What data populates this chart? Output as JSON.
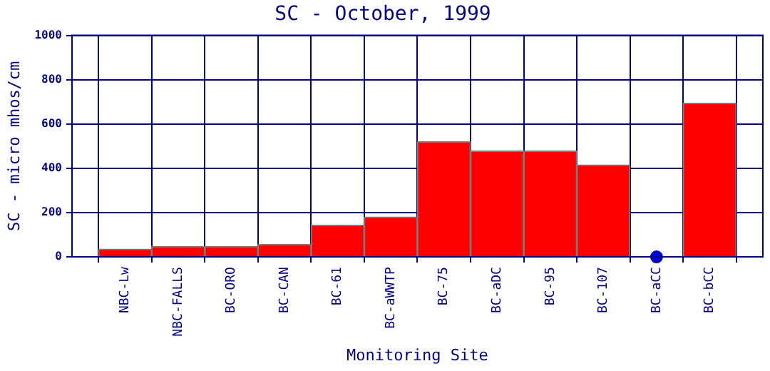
{
  "chart_data": {
    "type": "bar",
    "title": "SC - October, 1999",
    "xlabel": "Monitoring Site",
    "ylabel": "SC - micro mhos/cm",
    "categories": [
      "NBC-Lw",
      "NBC-FALLS",
      "BC-ORO",
      "BC-CAN",
      "BC-61",
      "BC-aWWTP",
      "BC-75",
      "BC-aDC",
      "BC-95",
      "BC-107",
      "BC-aCC",
      "BC-bCC"
    ],
    "series": [
      {
        "color": "#ff0000",
        "values": [
          35,
          47,
          47,
          56,
          143,
          180,
          520,
          478,
          478,
          415,
          null,
          694
        ]
      },
      {
        "type": "scatter",
        "color": "#0000cc",
        "x": [
          "BC-aCC"
        ],
        "values": [
          0
        ]
      }
    ],
    "ylim": [
      0,
      1000
    ],
    "yticks": [
      0,
      200,
      400,
      600,
      800,
      1000
    ],
    "grid": true,
    "legend": false
  }
}
